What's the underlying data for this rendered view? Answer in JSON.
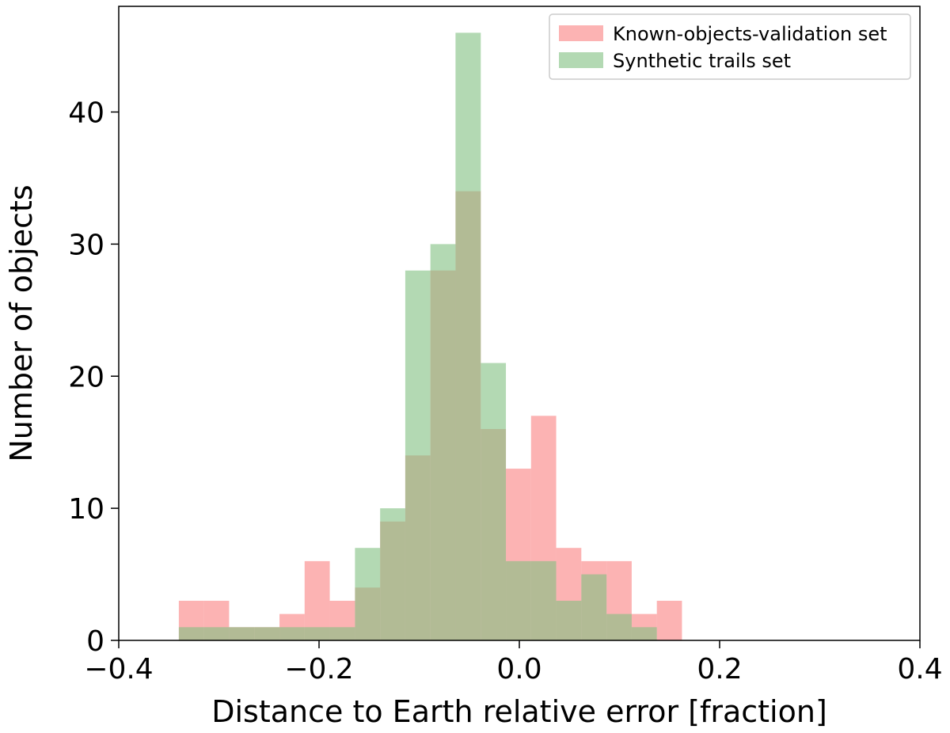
{
  "chart_data": {
    "type": "bar",
    "histogram": true,
    "xlabel": "Distance to Earth relative error [fraction]",
    "ylabel": "Number of objects",
    "xlim": [
      -0.4,
      0.4
    ],
    "ylim": [
      0,
      48
    ],
    "x_ticks": [
      -0.4,
      -0.2,
      0.0,
      0.2,
      0.4
    ],
    "x_tick_labels": [
      "−0.4",
      "−0.2",
      "0.0",
      "0.2",
      "0.4"
    ],
    "y_ticks": [
      0,
      10,
      20,
      30,
      40
    ],
    "y_tick_labels": [
      "0",
      "10",
      "20",
      "30",
      "40"
    ],
    "bin_edges": [
      -0.34,
      -0.3149,
      -0.2898,
      -0.2646,
      -0.2395,
      -0.2144,
      -0.1893,
      -0.1641,
      -0.139,
      -0.1139,
      -0.0888,
      -0.0637,
      -0.0385,
      -0.0134,
      0.0117,
      0.0368,
      0.0619,
      0.0871,
      0.1122,
      0.1373,
      0.1624,
      0.1876,
      0.2127,
      0.2378
    ],
    "legend_position": "upper right",
    "series": [
      {
        "name": "Known-objects-validation set",
        "color": "#fa8080",
        "alpha": 0.6,
        "values": [
          3,
          3,
          1,
          1,
          2,
          6,
          3,
          4,
          9,
          14,
          28,
          34,
          16,
          13,
          17,
          7,
          6,
          6,
          2,
          3,
          0,
          0,
          0
        ]
      },
      {
        "name": "Synthetic trails set",
        "color": "#80c080",
        "alpha": 0.6,
        "values": [
          1,
          1,
          1,
          1,
          1,
          1,
          1,
          7,
          10,
          28,
          30,
          46,
          21,
          6,
          6,
          3,
          5,
          2,
          1,
          0,
          0,
          0,
          0
        ]
      }
    ]
  }
}
